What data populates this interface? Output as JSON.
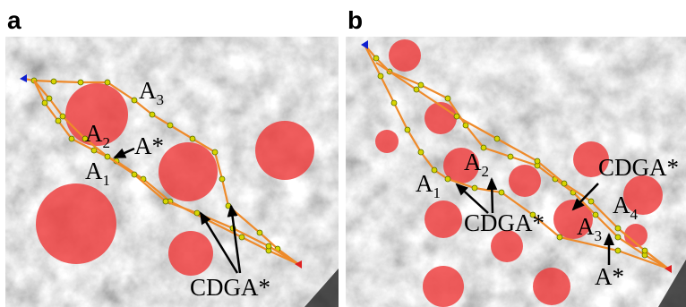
{
  "panels": [
    {
      "label": "a",
      "annotations": [
        {
          "text": "A",
          "sub": "3"
        },
        {
          "text": "A",
          "sub": "2"
        },
        {
          "text": "A*"
        },
        {
          "text": "A",
          "sub": "1"
        },
        {
          "text": "CDGA*"
        }
      ]
    },
    {
      "label": "b",
      "annotations": [
        {
          "text": "A",
          "sub": "2"
        },
        {
          "text": "A",
          "sub": "1"
        },
        {
          "text": "CDGA*"
        },
        {
          "text": "CDGA*"
        },
        {
          "text": "A",
          "sub": "4"
        },
        {
          "text": "A",
          "sub": "3"
        },
        {
          "text": "A*"
        }
      ]
    }
  ]
}
